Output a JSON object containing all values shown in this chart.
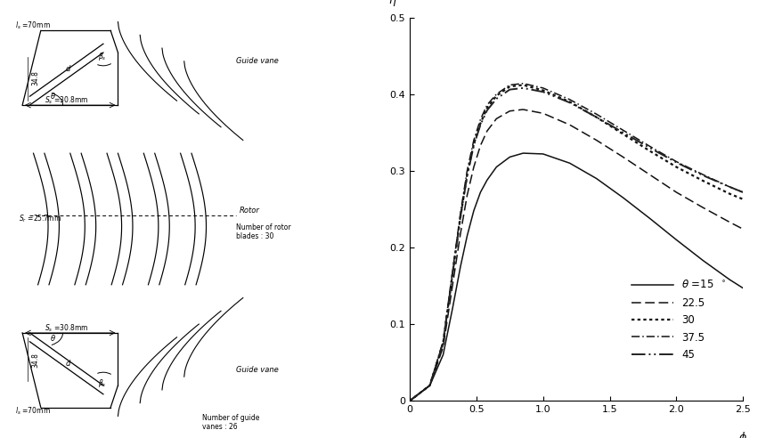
{
  "fig_width": 8.6,
  "fig_height": 4.92,
  "bg_color": "#ffffff",
  "chart": {
    "xlim": [
      0,
      2.5
    ],
    "ylim": [
      0,
      0.5
    ],
    "xticks": [
      0.5,
      1.0,
      1.5,
      2.0,
      2.5
    ],
    "yticks": [
      0.1,
      0.2,
      0.3,
      0.4,
      0.5
    ],
    "xlabel": "φ",
    "ylabel": "η",
    "xlabel_fontsize": 9,
    "ylabel_fontsize": 9
  },
  "curves": {
    "theta15": {
      "phi": [
        0.0,
        0.15,
        0.25,
        0.32,
        0.38,
        0.43,
        0.48,
        0.53,
        0.58,
        0.65,
        0.75,
        0.85,
        1.0,
        1.2,
        1.4,
        1.6,
        1.8,
        2.0,
        2.2,
        2.4,
        2.5
      ],
      "eta": [
        0.0,
        0.02,
        0.06,
        0.12,
        0.175,
        0.215,
        0.248,
        0.272,
        0.288,
        0.305,
        0.318,
        0.323,
        0.322,
        0.31,
        0.29,
        0.265,
        0.238,
        0.21,
        0.183,
        0.158,
        0.147
      ],
      "label": "θ =15  °"
    },
    "theta22": {
      "phi": [
        0.0,
        0.15,
        0.25,
        0.32,
        0.38,
        0.43,
        0.48,
        0.53,
        0.58,
        0.65,
        0.75,
        0.85,
        1.0,
        1.2,
        1.4,
        1.6,
        1.8,
        2.0,
        2.2,
        2.4,
        2.5
      ],
      "eta": [
        0.0,
        0.02,
        0.07,
        0.15,
        0.218,
        0.268,
        0.305,
        0.333,
        0.352,
        0.368,
        0.378,
        0.38,
        0.375,
        0.36,
        0.34,
        0.318,
        0.295,
        0.272,
        0.252,
        0.233,
        0.224
      ],
      "label": "22.5"
    },
    "theta30": {
      "phi": [
        0.0,
        0.15,
        0.25,
        0.32,
        0.38,
        0.43,
        0.48,
        0.53,
        0.58,
        0.65,
        0.75,
        0.85,
        1.0,
        1.2,
        1.4,
        1.6,
        1.8,
        2.0,
        2.2,
        2.4,
        2.5
      ],
      "eta": [
        0.0,
        0.02,
        0.075,
        0.165,
        0.24,
        0.295,
        0.335,
        0.362,
        0.382,
        0.398,
        0.41,
        0.412,
        0.405,
        0.39,
        0.37,
        0.348,
        0.326,
        0.305,
        0.287,
        0.27,
        0.263
      ],
      "label": "30"
    },
    "theta37": {
      "phi": [
        0.0,
        0.15,
        0.25,
        0.32,
        0.38,
        0.43,
        0.48,
        0.53,
        0.58,
        0.65,
        0.75,
        0.85,
        1.0,
        1.2,
        1.4,
        1.6,
        1.8,
        2.0,
        2.2,
        2.4,
        2.5
      ],
      "eta": [
        0.0,
        0.02,
        0.078,
        0.168,
        0.245,
        0.3,
        0.34,
        0.367,
        0.386,
        0.4,
        0.412,
        0.414,
        0.408,
        0.393,
        0.374,
        0.353,
        0.332,
        0.312,
        0.295,
        0.279,
        0.272
      ],
      "label": "37.5"
    },
    "theta45": {
      "phi": [
        0.0,
        0.15,
        0.25,
        0.32,
        0.38,
        0.43,
        0.48,
        0.53,
        0.58,
        0.65,
        0.75,
        0.85,
        1.0,
        1.2,
        1.4,
        1.6,
        1.8,
        2.0,
        2.2,
        2.4,
        2.5
      ],
      "eta": [
        0.0,
        0.02,
        0.076,
        0.164,
        0.24,
        0.293,
        0.333,
        0.36,
        0.379,
        0.394,
        0.406,
        0.408,
        0.403,
        0.389,
        0.37,
        0.35,
        0.33,
        0.311,
        0.294,
        0.279,
        0.272
      ],
      "label": "45"
    }
  }
}
